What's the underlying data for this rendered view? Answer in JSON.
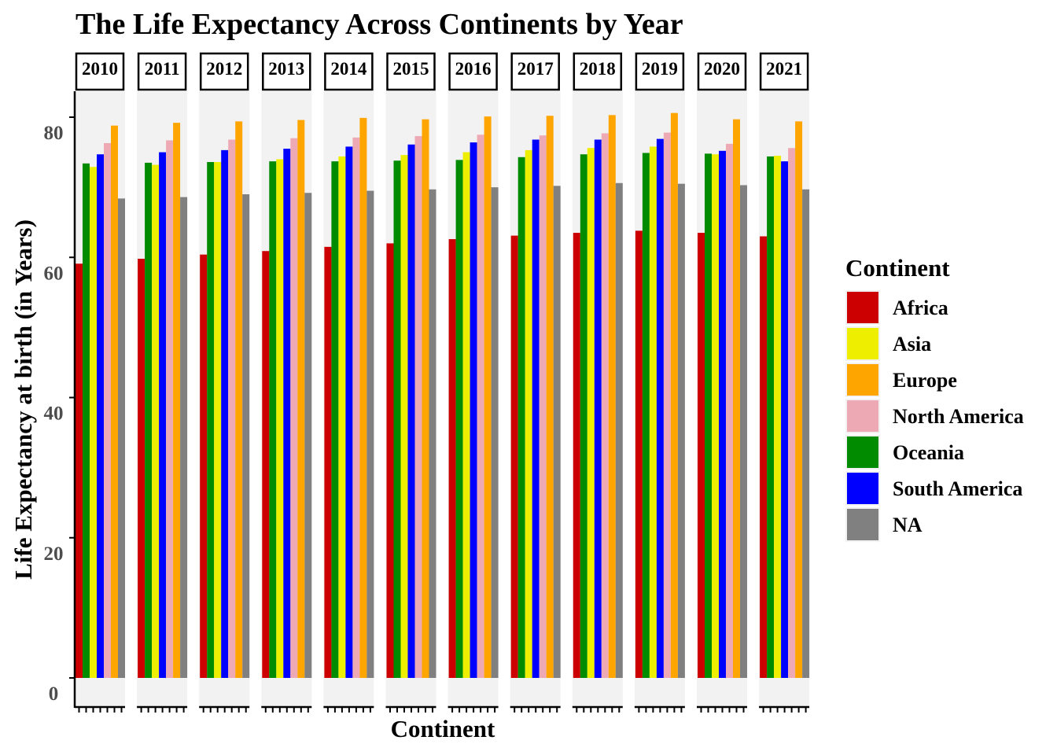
{
  "chart_data": {
    "type": "bar",
    "title": "The Life Expectancy Across Continents by Year",
    "xlabel": "Continent",
    "ylabel": "Life Expectancy at birth (in Years)",
    "y_ticks": [
      0,
      20,
      40,
      60,
      80
    ],
    "facets": [
      "2010",
      "2011",
      "2012",
      "2013",
      "2014",
      "2015",
      "2016",
      "2017",
      "2018",
      "2019",
      "2020",
      "2021"
    ],
    "facet_series_order": [
      "Africa",
      "Oceania",
      "Asia",
      "South America",
      "North America",
      "Europe",
      "NA"
    ],
    "legend": {
      "title": "Continent",
      "position": "right",
      "entries": [
        {
          "name": "Africa",
          "color": "#CC0000"
        },
        {
          "name": "Asia",
          "color": "#EEEE00"
        },
        {
          "name": "Europe",
          "color": "#FFA500"
        },
        {
          "name": "North America",
          "color": "#EEAAB4"
        },
        {
          "name": "Oceania",
          "color": "#008B00"
        },
        {
          "name": "South America",
          "color": "#0000FF"
        },
        {
          "name": "NA",
          "color": "#808080"
        }
      ]
    },
    "series": [
      {
        "name": "Africa",
        "values": [
          59.1,
          59.8,
          60.4,
          60.9,
          61.5,
          62.0,
          62.6,
          63.1,
          63.5,
          63.8,
          63.5,
          63.0
        ]
      },
      {
        "name": "Asia",
        "values": [
          72.9,
          73.2,
          73.6,
          74.0,
          74.4,
          74.6,
          75.0,
          75.3,
          75.6,
          75.8,
          74.7,
          74.5
        ]
      },
      {
        "name": "Europe",
        "values": [
          78.8,
          79.2,
          79.4,
          79.6,
          79.9,
          79.7,
          80.1,
          80.2,
          80.3,
          80.6,
          79.7,
          79.4
        ]
      },
      {
        "name": "North America",
        "values": [
          76.3,
          76.7,
          76.8,
          77.0,
          77.1,
          77.3,
          77.5,
          77.4,
          77.7,
          77.8,
          76.2,
          75.6
        ]
      },
      {
        "name": "Oceania",
        "values": [
          73.4,
          73.5,
          73.6,
          73.7,
          73.7,
          73.8,
          73.9,
          74.3,
          74.7,
          74.9,
          74.8,
          74.4
        ]
      },
      {
        "name": "South America",
        "values": [
          74.7,
          75.0,
          75.3,
          75.5,
          75.8,
          76.1,
          76.4,
          76.8,
          76.8,
          76.9,
          75.2,
          73.7
        ]
      },
      {
        "name": "NA",
        "values": [
          68.4,
          68.6,
          69.0,
          69.2,
          69.5,
          69.7,
          70.0,
          70.2,
          70.6,
          70.5,
          70.3,
          69.7
        ]
      }
    ]
  }
}
